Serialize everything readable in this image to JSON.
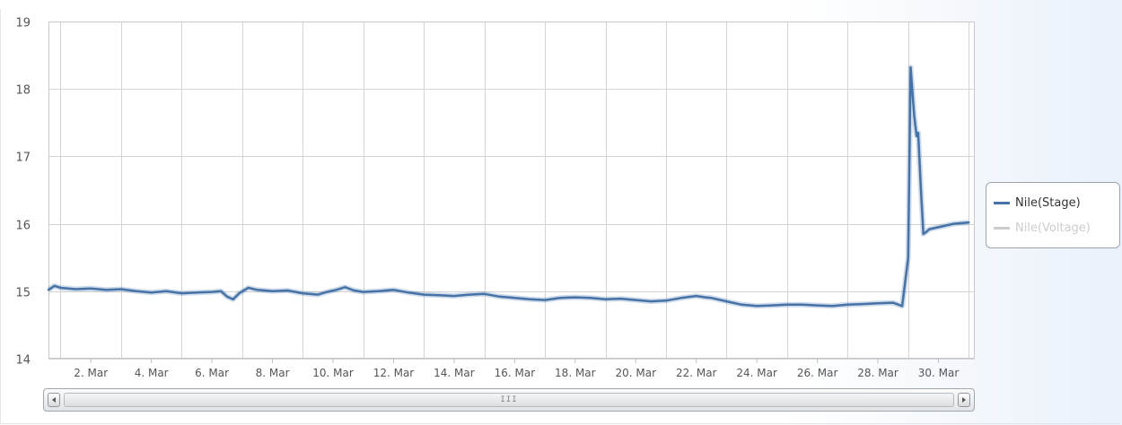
{
  "chart_data": {
    "type": "line",
    "title": "",
    "xlabel": "",
    "ylabel": "",
    "ylim": [
      14,
      19
    ],
    "yticks": [
      14,
      15,
      16,
      17,
      18,
      19
    ],
    "xlim": [
      0.6,
      31.2
    ],
    "xticks": [
      {
        "value": 2,
        "label": "2. Mar"
      },
      {
        "value": 4,
        "label": "4. Mar"
      },
      {
        "value": 6,
        "label": "6. Mar"
      },
      {
        "value": 8,
        "label": "8. Mar"
      },
      {
        "value": 10,
        "label": "10. Mar"
      },
      {
        "value": 12,
        "label": "12. Mar"
      },
      {
        "value": 14,
        "label": "14. Mar"
      },
      {
        "value": 16,
        "label": "16. Mar"
      },
      {
        "value": 18,
        "label": "18. Mar"
      },
      {
        "value": 20,
        "label": "20. Mar"
      },
      {
        "value": 22,
        "label": "22. Mar"
      },
      {
        "value": 24,
        "label": "24. Mar"
      },
      {
        "value": 26,
        "label": "26. Mar"
      },
      {
        "value": 28,
        "label": "28. Mar"
      },
      {
        "value": 30,
        "label": "30. Mar"
      }
    ],
    "vgrid": [
      1,
      3,
      5,
      7,
      9,
      11,
      13,
      15,
      17,
      19,
      21,
      23,
      25,
      27,
      29,
      31
    ],
    "grid": true,
    "legend_position": "right",
    "series": [
      {
        "name": "Nile(Stage)",
        "color": "#4572a7",
        "visible": true,
        "x": [
          0.6,
          0.8,
          1.0,
          1.5,
          2.0,
          2.5,
          3.0,
          3.5,
          4.0,
          4.5,
          5.0,
          5.5,
          6.0,
          6.3,
          6.5,
          6.7,
          6.9,
          7.2,
          7.5,
          8.0,
          8.5,
          9.0,
          9.5,
          9.8,
          10.1,
          10.4,
          10.7,
          11.0,
          11.5,
          12.0,
          12.5,
          13.0,
          13.5,
          14.0,
          14.5,
          15.0,
          15.5,
          16.0,
          16.5,
          17.0,
          17.5,
          18.0,
          18.5,
          19.0,
          19.5,
          20.0,
          20.5,
          21.0,
          21.5,
          22.0,
          22.3,
          22.5,
          23.0,
          23.5,
          24.0,
          24.5,
          25.0,
          25.5,
          26.0,
          26.5,
          27.0,
          27.5,
          28.0,
          28.5,
          28.8,
          29.0,
          29.08,
          29.2,
          29.28,
          29.33,
          29.42,
          29.5,
          29.6,
          29.7,
          30.0,
          30.5,
          31.0
        ],
        "y": [
          15.02,
          15.08,
          15.05,
          15.03,
          15.04,
          15.02,
          15.03,
          15.0,
          14.98,
          15.0,
          14.97,
          14.98,
          14.99,
          15.0,
          14.92,
          14.88,
          14.97,
          15.05,
          15.02,
          15.0,
          15.01,
          14.97,
          14.95,
          14.99,
          15.02,
          15.06,
          15.01,
          14.99,
          15.0,
          15.02,
          14.98,
          14.95,
          14.94,
          14.93,
          14.95,
          14.96,
          14.92,
          14.9,
          14.88,
          14.87,
          14.9,
          14.91,
          14.9,
          14.88,
          14.89,
          14.87,
          14.85,
          14.86,
          14.9,
          14.93,
          14.91,
          14.9,
          14.85,
          14.8,
          14.78,
          14.79,
          14.8,
          14.8,
          14.79,
          14.78,
          14.8,
          14.81,
          14.82,
          14.83,
          14.78,
          15.5,
          18.32,
          17.6,
          17.3,
          17.35,
          16.5,
          15.85,
          15.88,
          15.92,
          15.95,
          16.0,
          16.02
        ]
      },
      {
        "name": "Nile(Voltage)",
        "color": "#cccccc",
        "visible": false,
        "x": [],
        "y": []
      }
    ]
  },
  "scrollbar": {
    "grip": "III"
  }
}
